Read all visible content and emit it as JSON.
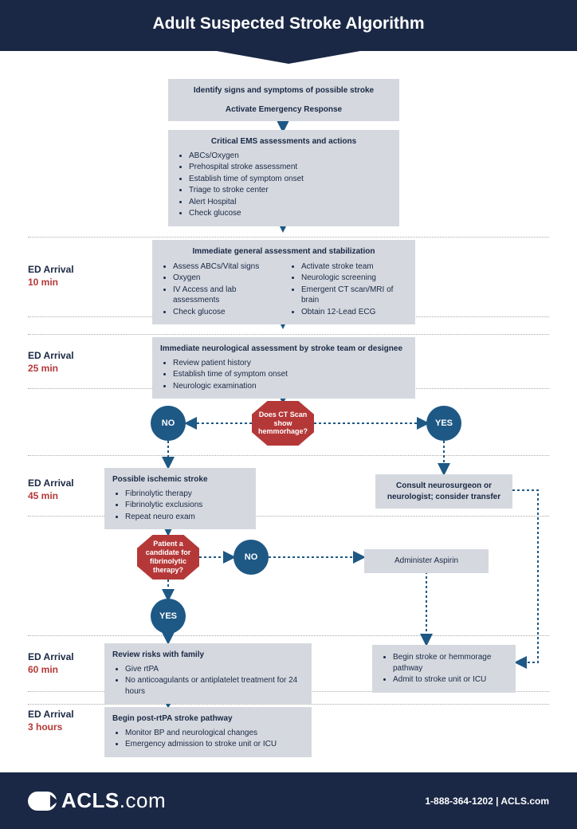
{
  "header": {
    "title": "Adult Suspected Stroke Algorithm"
  },
  "colors": {
    "header_bg": "#1a2845",
    "box_bg": "#d5d9df",
    "circle_bg": "#1e5885",
    "octagon_bg": "#b53838",
    "time_red": "#b53838",
    "divider": "#aaaaaa",
    "text": "#1a2845"
  },
  "timeline": [
    {
      "label": "ED Arrival",
      "time": "10 min"
    },
    {
      "label": "ED Arrival",
      "time": "25 min"
    },
    {
      "label": "ED Arrival",
      "time": "45 min"
    },
    {
      "label": "ED Arrival",
      "time": "60 min"
    },
    {
      "label": "ED Arrival",
      "time": "3 hours"
    }
  ],
  "nodes": {
    "n1": {
      "line1": "Identify signs and symptoms of possible stroke",
      "line2": "Activate Emergency Response"
    },
    "n2": {
      "title": "Critical EMS assessments and actions",
      "items": [
        "ABCs/Oxygen",
        "Prehospital stroke assessment",
        "Establish time of symptom onset",
        "Triage to stroke center",
        "Alert Hospital",
        "Check glucose"
      ]
    },
    "n3": {
      "title": "Immediate general assessment and stabilization",
      "col1": [
        "Assess ABCs/Vital signs",
        "Oxygen",
        "IV Access and lab assessments",
        "Check glucose"
      ],
      "col2": [
        "Activate stroke team",
        "Neurologic screening",
        "Emergent CT scan/MRI of brain",
        "Obtain 12-Lead ECG"
      ]
    },
    "n4": {
      "title": "Immediate neurological assessment by stroke team or designee",
      "items": [
        "Review patient history",
        "Establish time of symptom onset",
        "Neurologic examination"
      ]
    },
    "decision1": {
      "text": "Does CT Scan show hemmorhage?"
    },
    "no1": "NO",
    "yes1": "YES",
    "n5": {
      "title": "Possible ischemic stroke",
      "items": [
        "Fibrinolytic therapy",
        "Fibrinolytic exclusions",
        "Repeat neuro exam"
      ]
    },
    "n6": {
      "text": "Consult neurosurgeon or neurologist; consider transfer"
    },
    "decision2": {
      "text": "Patient a candidate for fibrinolytic therapy?"
    },
    "no2": "NO",
    "yes2": "YES",
    "n7": {
      "text": "Administer Aspirin"
    },
    "n8": {
      "title": "Review risks with family",
      "items": [
        "Give rtPA",
        "No anticoagulants or antiplatelet treatment for 24 hours"
      ]
    },
    "n9": {
      "items": [
        "Begin stroke or hemmorage pathway",
        "Admit to stroke unit or ICU"
      ]
    },
    "n10": {
      "title": "Begin post-rtPA stroke pathway",
      "items": [
        "Monitor BP and neurological changes",
        "Emergency admission to stroke unit or ICU"
      ]
    }
  },
  "footer": {
    "brand": "ACLS",
    "brand_suffix": ".com",
    "contact": "1-888-364-1202 | ACLS.com"
  }
}
